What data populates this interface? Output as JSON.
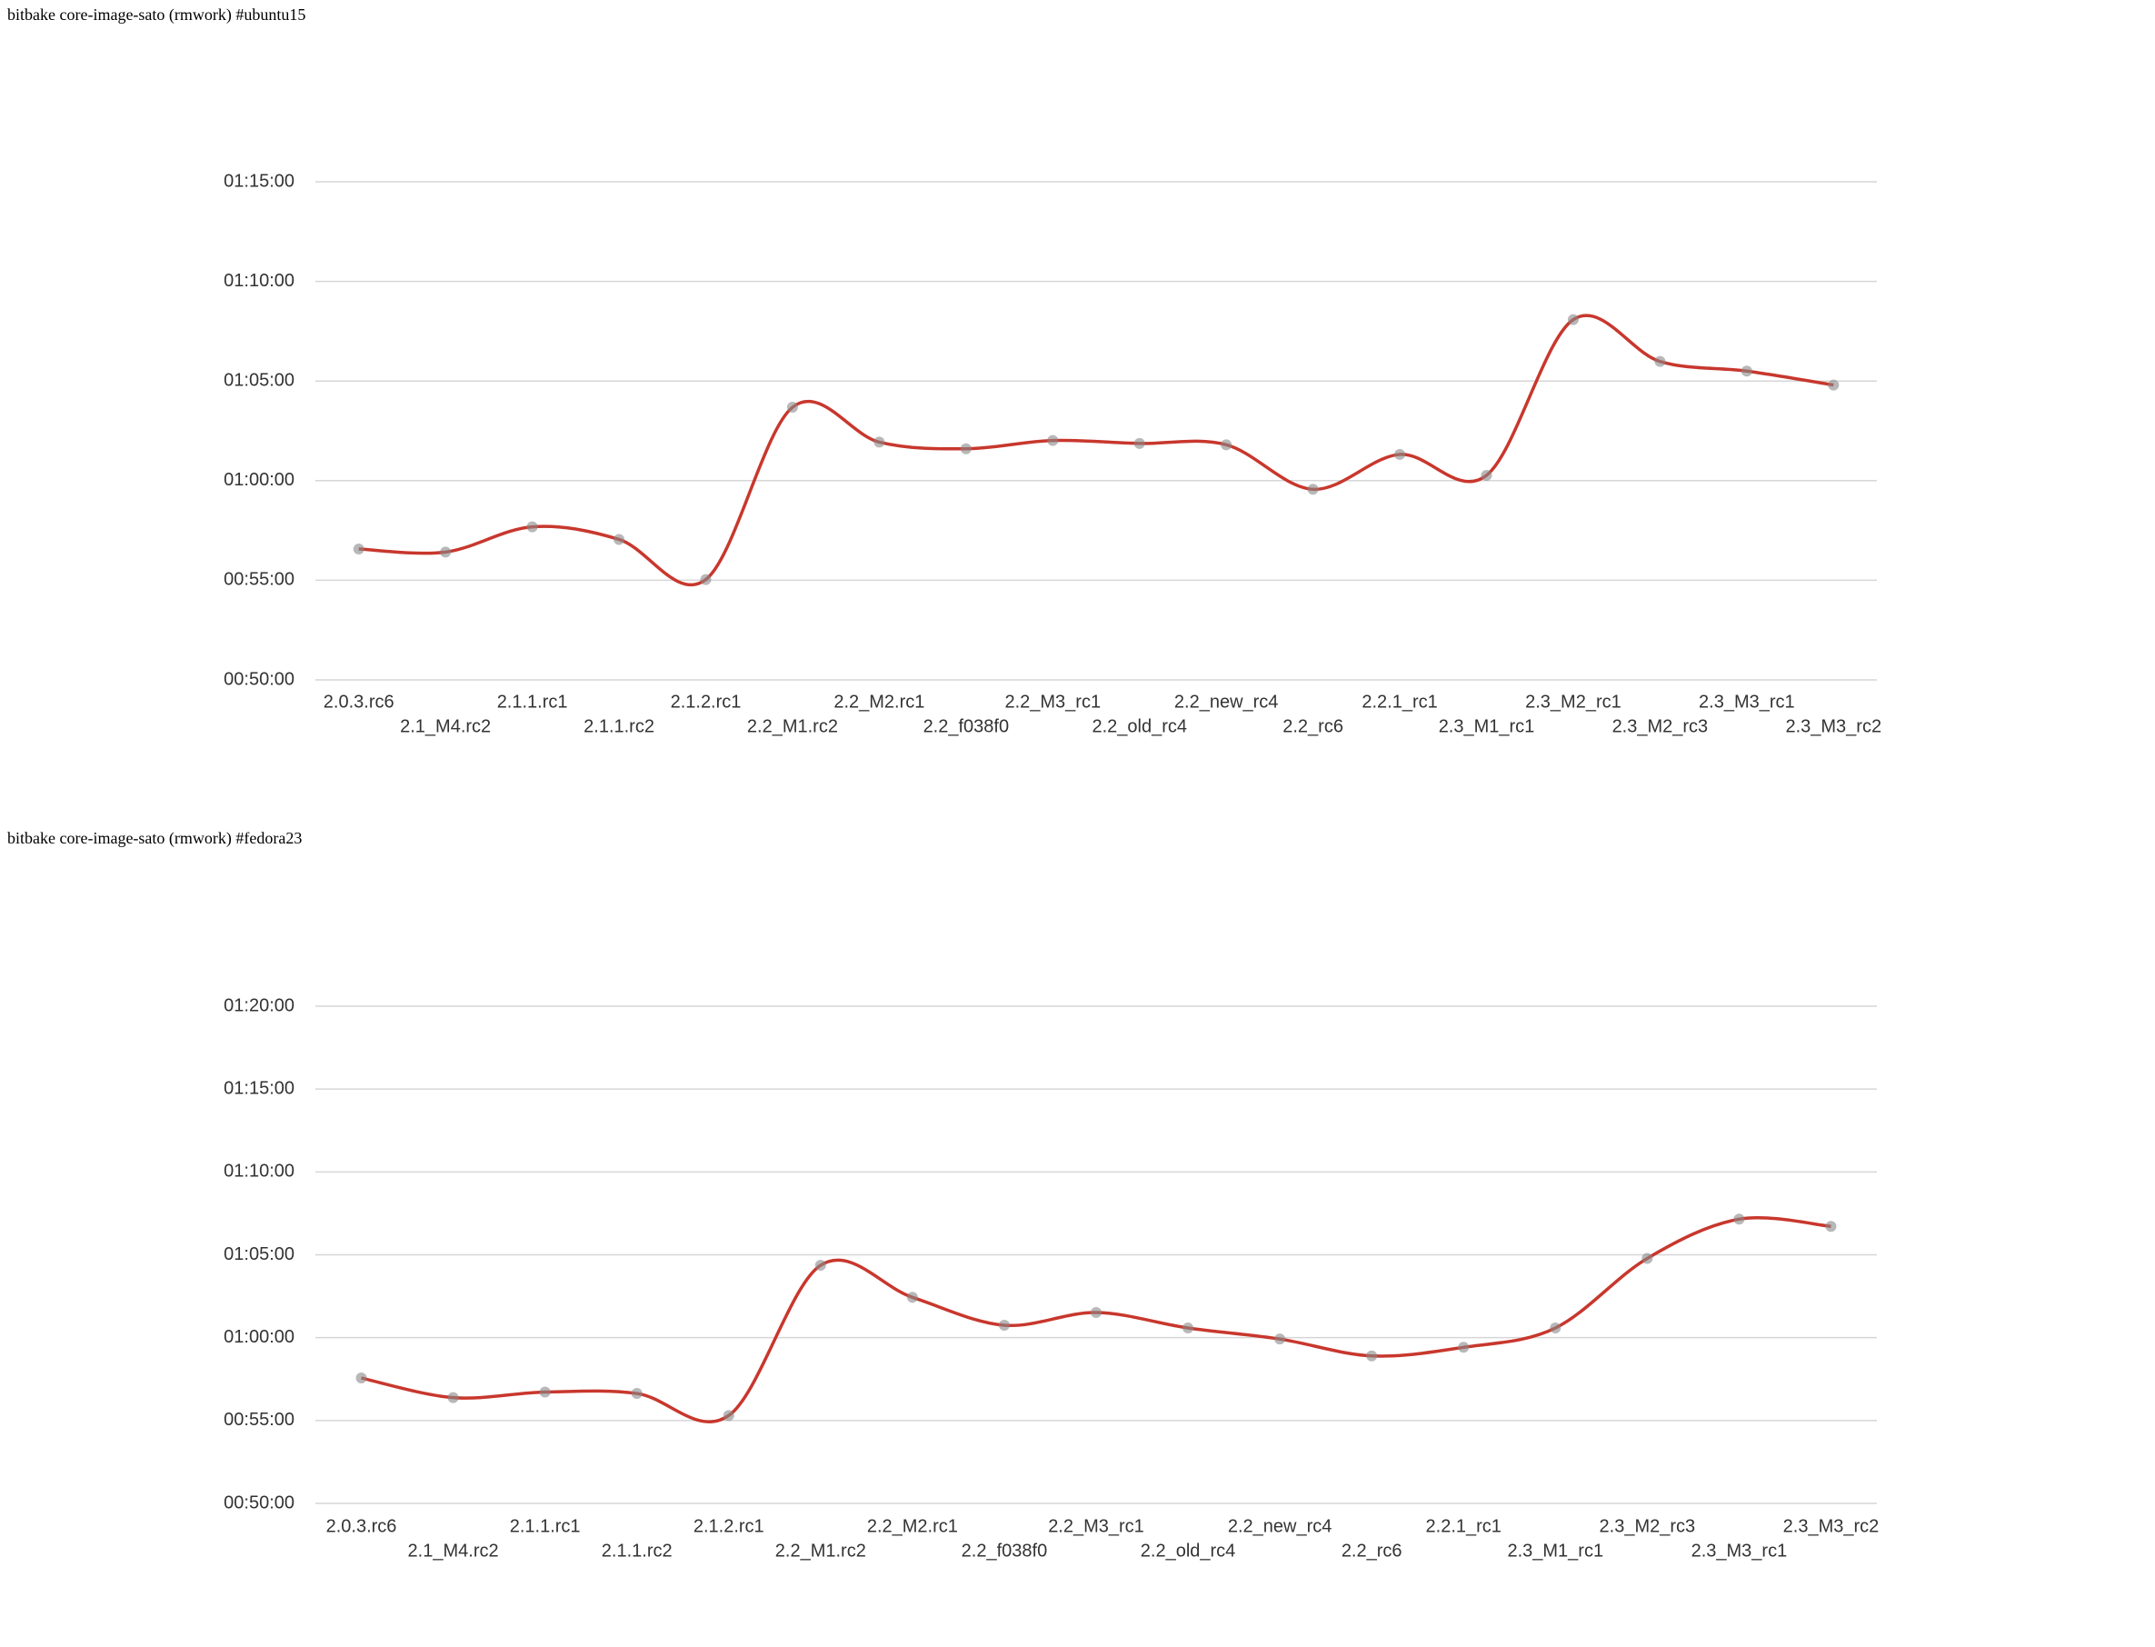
{
  "chart_data": [
    {
      "type": "line",
      "title": "bitbake core-image-sato (rmwork) #ubuntu15",
      "categories": [
        "2.0.3.rc6",
        "2.1_M4.rc2",
        "2.1.1.rc1",
        "2.1.1.rc2",
        "2.1.2.rc1",
        "2.2_M1.rc2",
        "2.2_M2.rc1",
        "2.2_f038f0",
        "2.2_M3_rc1",
        "2.2_old_rc4",
        "2.2_new_rc4",
        "2.2_rc6",
        "2.2.1_rc1",
        "2.3_M1_rc1",
        "2.3_M2_rc1",
        "2.3_M2_rc3",
        "2.3_M3_rc1",
        "2.3_M3_rc2"
      ],
      "series": [
        {
          "color": "#c8372d",
          "values": [
            3394,
            3385,
            3461,
            3423,
            3302,
            3821,
            3716,
            3696,
            3721,
            3712,
            3708,
            3574,
            3679,
            3616,
            4085,
            3959,
            3930,
            3888
          ]
        }
      ],
      "ylim": [
        3000,
        4500
      ],
      "yticks": [
        {
          "value": 3000,
          "label": "00:50:00"
        },
        {
          "value": 3300,
          "label": "00:55:00"
        },
        {
          "value": 3600,
          "label": "01:00:00"
        },
        {
          "value": 3900,
          "label": "01:05:00"
        },
        {
          "value": 4200,
          "label": "01:10:00"
        },
        {
          "value": 4500,
          "label": "01:15:00"
        }
      ],
      "grid": true
    },
    {
      "type": "line",
      "title": "bitbake core-image-sato (rmwork) #fedora23",
      "categories": [
        "2.0.3.rc6",
        "2.1_M4.rc2",
        "2.1.1.rc1",
        "2.1.1.rc2",
        "2.1.2.rc1",
        "2.2_M1.rc2",
        "2.2_M2.rc1",
        "2.2_f038f0",
        "2.2_M3_rc1",
        "2.2_old_rc4",
        "2.2_new_rc4",
        "2.2_rc6",
        "2.2.1_rc1",
        "2.3_M1_rc1",
        "2.3_M2_rc3",
        "2.3_M3_rc1",
        "2.3_M3_rc2"
      ],
      "series": [
        {
          "color": "#c8372d",
          "values": [
            3454,
            3383,
            3403,
            3398,
            3318,
            3862,
            3746,
            3645,
            3691,
            3635,
            3595,
            3534,
            3565,
            3635,
            3887,
            4029,
            4003
          ]
        }
      ],
      "ylim": [
        3000,
        4800
      ],
      "yticks": [
        {
          "value": 3000,
          "label": "00:50:00"
        },
        {
          "value": 3300,
          "label": "00:55:00"
        },
        {
          "value": 3600,
          "label": "01:00:00"
        },
        {
          "value": 3900,
          "label": "01:05:00"
        },
        {
          "value": 4200,
          "label": "01:10:00"
        },
        {
          "value": 4500,
          "label": "01:15:00"
        },
        {
          "value": 4800,
          "label": "01:20:00"
        }
      ],
      "grid": true
    }
  ]
}
